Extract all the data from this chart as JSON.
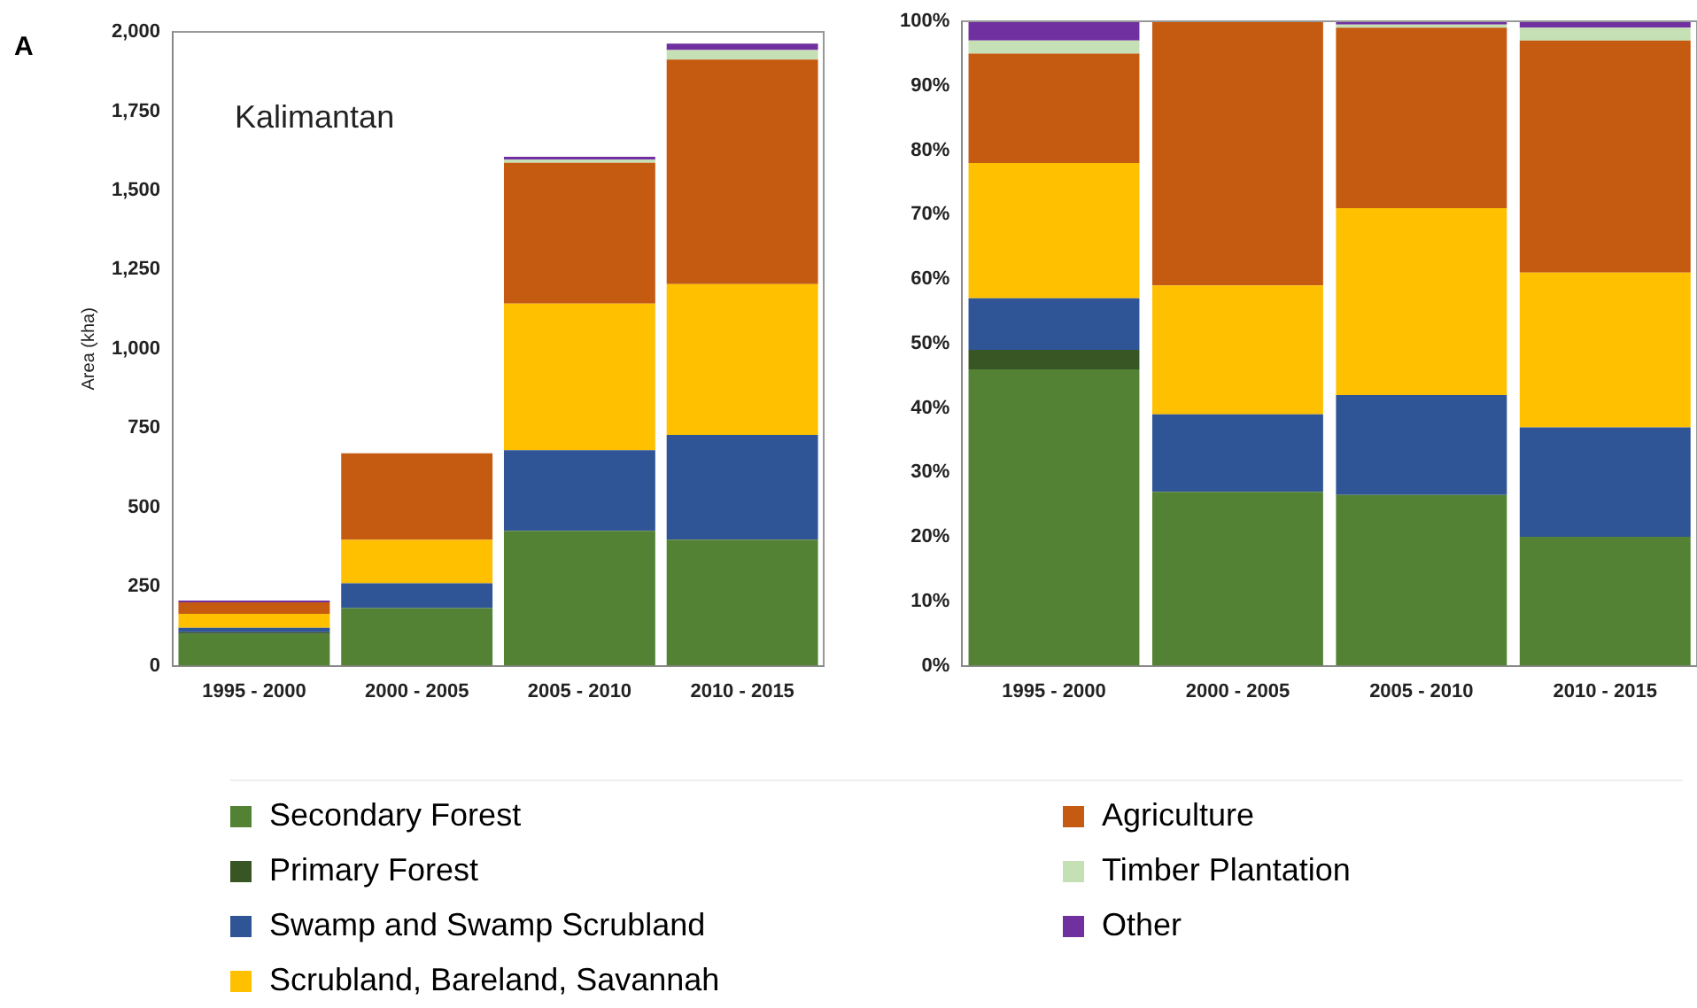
{
  "chart_data": [
    {
      "type": "bar",
      "title": "A",
      "ylabel": "Area (kha)",
      "annotations": [
        "Kalimantan"
      ],
      "stacked": true,
      "legend": "bottom",
      "categories": [
        "1995 - 2000",
        "2000 - 2005",
        "2005 - 2010",
        "2010 - 2015"
      ],
      "ylim": [
        0,
        2000
      ],
      "yticks": [
        0,
        250,
        500,
        750,
        {
          "value": 1000,
          "label": "1,000"
        },
        {
          "value": 1250,
          "label": "1,250"
        },
        {
          "value": 1500,
          "label": "1,500"
        },
        {
          "value": 1750,
          "label": "1,750"
        },
        {
          "value": 2000,
          "label": "2,000"
        }
      ],
      "series": [
        {
          "name": "Secondary Forest",
          "color": "#548235",
          "values": [
            100,
            182,
            426,
            398
          ]
        },
        {
          "name": "Primary Forest",
          "color": "#375623",
          "values": [
            6,
            0,
            0,
            0
          ]
        },
        {
          "name": "Swamp and Swamp Scrubland",
          "color": "#2f5597",
          "values": [
            14,
            78,
            254,
            330
          ]
        },
        {
          "name": "Scrubland, Bareland, Savannah",
          "color": "#ffc000",
          "values": [
            44,
            137,
            463,
            476
          ]
        },
        {
          "name": "Agriculture",
          "color": "#c55a11",
          "values": [
            36,
            273,
            444,
            709
          ]
        },
        {
          "name": "Timber Plantation",
          "color": "#c5e0b4",
          "values": [
            null,
            0,
            10,
            30
          ]
        },
        {
          "name": "Other",
          "color": "#7030a0",
          "values": [
            6,
            0,
            9,
            20
          ]
        }
      ]
    },
    {
      "type": "bar",
      "stacked": true,
      "categories": [
        "1995 - 2000",
        "2000 - 2005",
        "2005 - 2010",
        "2010 - 2015"
      ],
      "ylim": [
        0,
        100
      ],
      "yticks": [
        {
          "value": 0,
          "label": "0%"
        },
        {
          "value": 10,
          "label": "10%"
        },
        {
          "value": 20,
          "label": "20%"
        },
        {
          "value": 30,
          "label": "30%"
        },
        {
          "value": 40,
          "label": "40%"
        },
        {
          "value": 50,
          "label": "50%"
        },
        {
          "value": 60,
          "label": "60%"
        },
        {
          "value": 70,
          "label": "70%"
        },
        {
          "value": 80,
          "label": "80%"
        },
        {
          "value": 90,
          "label": "90%"
        },
        {
          "value": 100,
          "label": "100%"
        }
      ],
      "series": [
        {
          "color": "#548235",
          "values": [
            46,
            27,
            26.5,
            20
          ]
        },
        {
          "color": "#375623",
          "values": [
            3,
            0,
            0,
            0
          ]
        },
        {
          "color": "#2f5597",
          "values": [
            8,
            12,
            15.5,
            17
          ]
        },
        {
          "color": "#ffc000",
          "values": [
            21,
            20,
            29,
            24
          ]
        },
        {
          "color": "#c55a11",
          "values": [
            17,
            41,
            28,
            36
          ]
        },
        {
          "color": "#c5e0b4",
          "values": [
            2,
            0,
            0.5,
            2
          ]
        },
        {
          "color": "#7030a0",
          "values": [
            3,
            0,
            0.5,
            1
          ]
        }
      ]
    }
  ]
}
